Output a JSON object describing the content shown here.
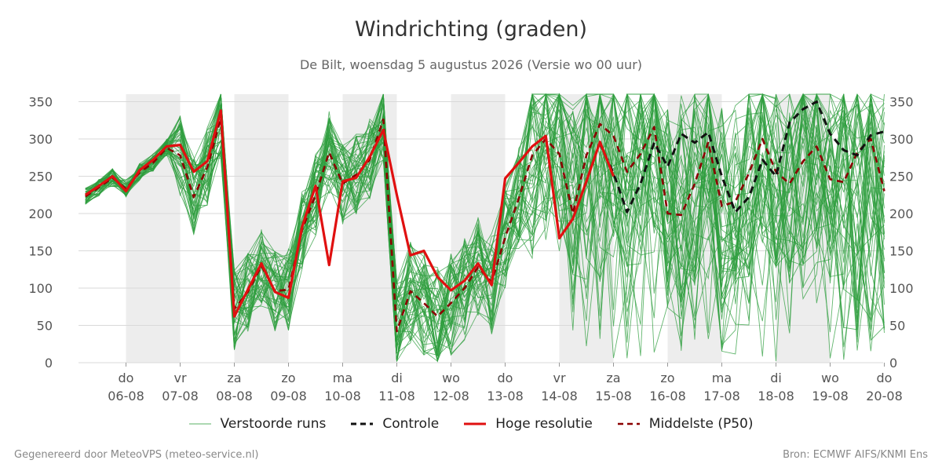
{
  "title": "Windrichting (graden)",
  "subtitle": "De Bilt, woensdag  5 augustus 2026 (Versie wo 00 uur)",
  "footer": {
    "left": "Gegenereerd door MeteoVPS (meteo-service.nl)",
    "right": "Bron: ECMWF AIFS/KNMI Ens"
  },
  "legend": [
    {
      "label": "Verstoorde runs",
      "color": "#2e9e3e",
      "style": "thin"
    },
    {
      "label": "Controle",
      "color": "#111111",
      "style": "dashed"
    },
    {
      "label": "Hoge resolutie",
      "color": "#e01010",
      "style": "solid"
    },
    {
      "label": "Middelste (P50)",
      "color": "#8b0000",
      "style": "dashed"
    }
  ],
  "chart_data": {
    "type": "line",
    "x_unit": "dagen vanaf wo 05-08",
    "xlim": [
      0.25,
      15.0
    ],
    "ylim": [
      0,
      360
    ],
    "y_ticks": [
      0,
      50,
      100,
      150,
      200,
      250,
      300,
      350
    ],
    "x_ticks": [
      {
        "x": 1,
        "day": "do",
        "date": "06-08"
      },
      {
        "x": 2,
        "day": "vr",
        "date": "07-08"
      },
      {
        "x": 3,
        "day": "za",
        "date": "08-08"
      },
      {
        "x": 4,
        "day": "zo",
        "date": "09-08"
      },
      {
        "x": 5,
        "day": "ma",
        "date": "10-08"
      },
      {
        "x": 6,
        "day": "di",
        "date": "11-08"
      },
      {
        "x": 7,
        "day": "wo",
        "date": "12-08"
      },
      {
        "x": 8,
        "day": "do",
        "date": "13-08"
      },
      {
        "x": 9,
        "day": "vr",
        "date": "14-08"
      },
      {
        "x": 10,
        "day": "za",
        "date": "15-08"
      },
      {
        "x": 11,
        "day": "zo",
        "date": "16-08"
      },
      {
        "x": 12,
        "day": "ma",
        "date": "17-08"
      },
      {
        "x": 13,
        "day": "di",
        "date": "18-08"
      },
      {
        "x": 14,
        "day": "wo",
        "date": "19-08"
      },
      {
        "x": 15,
        "day": "do",
        "date": "20-08"
      }
    ],
    "shaded_bands": [
      [
        1,
        2
      ],
      [
        3,
        4
      ],
      [
        5,
        6
      ],
      [
        7,
        8
      ],
      [
        9,
        10
      ],
      [
        11,
        12
      ],
      [
        13,
        14
      ]
    ],
    "grid": true,
    "legend_position": "bottom",
    "series": [
      {
        "name": "Hoge resolutie",
        "color": "#e01010",
        "points": [
          [
            0.25,
            225
          ],
          [
            0.5,
            237
          ],
          [
            0.75,
            250
          ],
          [
            1.0,
            230
          ],
          [
            1.25,
            258
          ],
          [
            1.5,
            272
          ],
          [
            1.75,
            290
          ],
          [
            2.0,
            292
          ],
          [
            2.25,
            256
          ],
          [
            2.5,
            270
          ],
          [
            2.75,
            338
          ],
          [
            3.0,
            62
          ],
          [
            3.25,
            98
          ],
          [
            3.5,
            133
          ],
          [
            3.75,
            95
          ],
          [
            4.0,
            87
          ],
          [
            4.25,
            182
          ],
          [
            4.5,
            237
          ],
          [
            4.75,
            131
          ],
          [
            5.0,
            243
          ],
          [
            5.25,
            248
          ],
          [
            5.5,
            276
          ],
          [
            5.75,
            312
          ],
          [
            6.0,
            225
          ],
          [
            6.25,
            144
          ],
          [
            6.5,
            150
          ],
          [
            6.75,
            115
          ],
          [
            7.0,
            97
          ],
          [
            7.25,
            110
          ],
          [
            7.5,
            133
          ],
          [
            7.75,
            104
          ],
          [
            8.0,
            247
          ],
          [
            8.25,
            268
          ],
          [
            8.5,
            290
          ],
          [
            8.75,
            304
          ],
          [
            9.0,
            167
          ],
          [
            9.25,
            193
          ],
          [
            9.5,
            243
          ],
          [
            9.75,
            296
          ],
          [
            10.0,
            250
          ]
        ]
      },
      {
        "name": "Controle",
        "color": "#111111",
        "points": [
          [
            9.75,
            294
          ],
          [
            10.0,
            254
          ],
          [
            10.25,
            202
          ],
          [
            10.5,
            240
          ],
          [
            10.75,
            295
          ],
          [
            11.0,
            263
          ],
          [
            11.25,
            307
          ],
          [
            11.5,
            295
          ],
          [
            11.75,
            309
          ],
          [
            12.0,
            250
          ],
          [
            12.25,
            202
          ],
          [
            12.5,
            222
          ],
          [
            12.75,
            272
          ],
          [
            13.0,
            250
          ],
          [
            13.25,
            322
          ],
          [
            13.5,
            340
          ],
          [
            13.75,
            350
          ],
          [
            14.0,
            307
          ],
          [
            14.25,
            285
          ],
          [
            14.5,
            278
          ],
          [
            14.75,
            305
          ],
          [
            15.0,
            310
          ]
        ]
      },
      {
        "name": "Middelste (P50)",
        "color": "#8b0000",
        "points": [
          [
            0.25,
            223
          ],
          [
            0.5,
            235
          ],
          [
            0.75,
            248
          ],
          [
            1.0,
            233
          ],
          [
            1.25,
            255
          ],
          [
            1.5,
            268
          ],
          [
            1.75,
            288
          ],
          [
            2.0,
            278
          ],
          [
            2.25,
            222
          ],
          [
            2.5,
            262
          ],
          [
            2.75,
            328
          ],
          [
            3.0,
            72
          ],
          [
            3.25,
            95
          ],
          [
            3.5,
            130
          ],
          [
            3.75,
            96
          ],
          [
            4.0,
            98
          ],
          [
            4.25,
            178
          ],
          [
            4.5,
            225
          ],
          [
            4.75,
            282
          ],
          [
            5.0,
            240
          ],
          [
            5.25,
            252
          ],
          [
            5.5,
            272
          ],
          [
            5.75,
            326
          ],
          [
            6.0,
            42
          ],
          [
            6.25,
            96
          ],
          [
            6.5,
            80
          ],
          [
            6.75,
            62
          ],
          [
            7.0,
            80
          ],
          [
            7.25,
            100
          ],
          [
            7.5,
            128
          ],
          [
            7.75,
            108
          ],
          [
            8.0,
            168
          ],
          [
            8.25,
            220
          ],
          [
            8.5,
            278
          ],
          [
            8.75,
            300
          ],
          [
            9.0,
            280
          ],
          [
            9.25,
            200
          ],
          [
            9.5,
            278
          ],
          [
            9.75,
            320
          ],
          [
            10.0,
            304
          ],
          [
            10.25,
            256
          ],
          [
            10.5,
            280
          ],
          [
            10.75,
            316
          ],
          [
            11.0,
            200
          ],
          [
            11.25,
            198
          ],
          [
            11.5,
            240
          ],
          [
            11.75,
            296
          ],
          [
            12.0,
            210
          ],
          [
            12.25,
            216
          ],
          [
            12.5,
            254
          ],
          [
            12.75,
            300
          ],
          [
            13.0,
            256
          ],
          [
            13.25,
            240
          ],
          [
            13.5,
            270
          ],
          [
            13.75,
            290
          ],
          [
            14.0,
            246
          ],
          [
            14.25,
            242
          ],
          [
            14.5,
            282
          ],
          [
            14.75,
            300
          ],
          [
            15.0,
            230
          ]
        ]
      }
    ],
    "ensemble_members": {
      "name": "Verstoorde runs",
      "color": "#2e9e3e",
      "count": 50,
      "x_step": 0.25,
      "x_range": [
        0.25,
        15.0
      ],
      "envelope_min": 0,
      "envelope_max": 360
    }
  }
}
